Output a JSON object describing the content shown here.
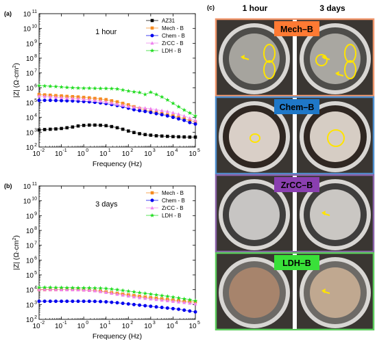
{
  "chart_data": [
    {
      "type": "scatter",
      "panel_label": "(a)",
      "annotation": "1 hour",
      "title": "",
      "xlabel": "Frequency (Hz)",
      "ylabel_main": "|Z| (",
      "ylabel_unit": "Ω·cm",
      "ylabel_sup": "2",
      "ylabel_end": ")",
      "xscale": "log",
      "yscale": "log",
      "xlim_exp": [
        -2,
        5
      ],
      "ylim_exp": [
        2,
        11
      ],
      "xticks": [
        "10",
        "10",
        "10",
        "10",
        "10",
        "10",
        "10",
        "10"
      ],
      "xtick_exps": [
        "-2",
        "-1",
        "0",
        "1",
        "2",
        "3",
        "4",
        "5"
      ],
      "yticks": [
        "10",
        "10",
        "10",
        "10",
        "10",
        "10",
        "10",
        "10",
        "10",
        "10"
      ],
      "ytick_exps": [
        "2",
        "3",
        "4",
        "5",
        "6",
        "7",
        "8",
        "9",
        "10",
        "11"
      ],
      "legend_position": "top-right",
      "x_exp": [
        -2.0,
        -1.75,
        -1.5,
        -1.25,
        -1.0,
        -0.75,
        -0.5,
        -0.25,
        0.0,
        0.25,
        0.5,
        0.75,
        1.0,
        1.25,
        1.5,
        1.75,
        2.0,
        2.25,
        2.5,
        2.75,
        3.0,
        3.25,
        3.5,
        3.75,
        4.0,
        4.25,
        4.5,
        4.75,
        5.0
      ],
      "series": [
        {
          "name": "AZ31",
          "color": "#000000",
          "marker": "square",
          "y_exp": [
            3.15,
            3.18,
            3.2,
            3.22,
            3.25,
            3.3,
            3.35,
            3.42,
            3.46,
            3.48,
            3.48,
            3.47,
            3.44,
            3.38,
            3.3,
            3.2,
            3.08,
            2.98,
            2.9,
            2.84,
            2.8,
            2.76,
            2.74,
            2.72,
            2.7,
            2.69,
            2.68,
            2.67,
            2.67
          ]
        },
        {
          "name": "Mech - B",
          "color": "#f58a1f",
          "marker": "square",
          "y_exp": [
            5.55,
            5.52,
            5.5,
            5.47,
            5.45,
            5.42,
            5.4,
            5.38,
            5.35,
            5.32,
            5.28,
            5.24,
            5.2,
            5.12,
            5.05,
            4.95,
            4.85,
            4.72,
            4.6,
            4.5,
            4.4,
            4.32,
            4.25,
            4.17,
            4.1,
            4.0,
            3.9,
            3.8,
            3.7
          ]
        },
        {
          "name": "Chem - B",
          "color": "#0000ee",
          "marker": "circle",
          "y_exp": [
            5.15,
            5.15,
            5.15,
            5.14,
            5.13,
            5.12,
            5.11,
            5.09,
            5.07,
            5.05,
            5.02,
            4.98,
            4.93,
            4.87,
            4.8,
            4.72,
            4.62,
            4.52,
            4.45,
            4.4,
            4.33,
            4.25,
            4.18,
            4.1,
            4.0,
            3.9,
            3.8,
            3.65,
            3.55
          ]
        },
        {
          "name": "ZrCC - B",
          "color": "#ee82ee",
          "marker": "triangle",
          "y_exp": [
            5.45,
            5.42,
            5.39,
            5.36,
            5.33,
            5.3,
            5.28,
            5.25,
            5.22,
            5.19,
            5.15,
            5.1,
            5.05,
            4.98,
            4.9,
            4.82,
            4.75,
            4.7,
            4.66,
            4.63,
            4.58,
            4.52,
            4.46,
            4.4,
            4.32,
            4.22,
            4.1,
            3.95,
            3.8
          ]
        },
        {
          "name": "LDH - B",
          "color": "#22dd22",
          "marker": "star",
          "y_exp": [
            6.15,
            6.12,
            6.1,
            6.08,
            6.05,
            6.02,
            6.0,
            5.98,
            5.97,
            5.97,
            5.96,
            5.95,
            5.95,
            5.94,
            5.92,
            5.85,
            5.78,
            5.72,
            5.68,
            5.55,
            5.7,
            5.55,
            5.38,
            5.18,
            4.95,
            4.72,
            4.5,
            4.3,
            4.1
          ]
        }
      ]
    },
    {
      "type": "scatter",
      "panel_label": "(b)",
      "annotation": "3 days",
      "title": "",
      "xlabel": "Frequency (Hz)",
      "ylabel_main": "|Z| (",
      "ylabel_unit": "Ω·cm",
      "ylabel_sup": "2",
      "ylabel_end": ")",
      "xscale": "log",
      "yscale": "log",
      "xlim_exp": [
        -2,
        5
      ],
      "ylim_exp": [
        2,
        11
      ],
      "xticks": [
        "10",
        "10",
        "10",
        "10",
        "10",
        "10",
        "10",
        "10"
      ],
      "xtick_exps": [
        "-2",
        "-1",
        "0",
        "1",
        "2",
        "3",
        "4",
        "5"
      ],
      "yticks": [
        "10",
        "10",
        "10",
        "10",
        "10",
        "10",
        "10",
        "10",
        "10",
        "10"
      ],
      "ytick_exps": [
        "2",
        "3",
        "4",
        "5",
        "6",
        "7",
        "8",
        "9",
        "10",
        "11"
      ],
      "legend_position": "top-right",
      "x_exp": [
        -2.0,
        -1.75,
        -1.5,
        -1.25,
        -1.0,
        -0.75,
        -0.5,
        -0.25,
        0.0,
        0.25,
        0.5,
        0.75,
        1.0,
        1.25,
        1.5,
        1.75,
        2.0,
        2.25,
        2.5,
        2.75,
        3.0,
        3.25,
        3.5,
        3.75,
        4.0,
        4.25,
        4.5,
        4.75,
        5.0
      ],
      "series": [
        {
          "name": "Mech - B",
          "color": "#f58a1f",
          "marker": "square",
          "y_exp": [
            4.0,
            4.0,
            4.0,
            4.0,
            4.0,
            4.0,
            4.0,
            4.0,
            3.98,
            3.96,
            3.93,
            3.9,
            3.85,
            3.8,
            3.75,
            3.7,
            3.65,
            3.6,
            3.55,
            3.5,
            3.46,
            3.42,
            3.38,
            3.34,
            3.3,
            3.26,
            3.22,
            3.2,
            3.18
          ]
        },
        {
          "name": "Chem - B",
          "color": "#0000ee",
          "marker": "circle",
          "y_exp": [
            3.22,
            3.22,
            3.22,
            3.22,
            3.22,
            3.22,
            3.22,
            3.22,
            3.22,
            3.22,
            3.21,
            3.2,
            3.18,
            3.15,
            3.12,
            3.08,
            3.04,
            3.0,
            2.96,
            2.92,
            2.88,
            2.84,
            2.8,
            2.76,
            2.72,
            2.68,
            2.62,
            2.56,
            2.5
          ]
        },
        {
          "name": "ZrCC - B",
          "color": "#ee82ee",
          "marker": "triangle",
          "y_exp": [
            4.02,
            4.02,
            4.01,
            4.01,
            4.0,
            4.0,
            4.0,
            3.99,
            3.98,
            3.96,
            3.93,
            3.88,
            3.82,
            3.76,
            3.7,
            3.64,
            3.58,
            3.52,
            3.47,
            3.42,
            3.38,
            3.34,
            3.3,
            3.26,
            3.22,
            3.18,
            3.14,
            3.1,
            3.05
          ]
        },
        {
          "name": "LDH - B",
          "color": "#22dd22",
          "marker": "star",
          "y_exp": [
            4.15,
            4.15,
            4.15,
            4.14,
            4.14,
            4.13,
            4.13,
            4.12,
            4.12,
            4.12,
            4.11,
            4.1,
            4.08,
            4.04,
            4.0,
            3.95,
            3.9,
            3.85,
            3.8,
            3.75,
            3.7,
            3.65,
            3.6,
            3.55,
            3.5,
            3.44,
            3.38,
            3.32,
            3.25
          ]
        }
      ]
    }
  ],
  "photos": {
    "panel_label": "(c)",
    "col_1h": "1 hour",
    "col_3d": "3 days",
    "rows": [
      {
        "label": "Mech–B",
        "border": "#f0956a",
        "label_bg": "#ff7a33",
        "label_color": "#000000",
        "surface_1h": "#a6a49e",
        "surface_3d": "#a9a7a1",
        "ring": "#4e4d4a",
        "circles_1h": 2,
        "circles_3d": 3,
        "arrows_1h": 1,
        "arrows_3d": 2
      },
      {
        "label": "Chem–B",
        "border": "#4f8fcf",
        "label_bg": "#1f78c8",
        "label_color": "#000000",
        "surface_1h": "#d9cfc7",
        "surface_3d": "#d6cdc4",
        "ring": "#2f2722",
        "circles_1h": 1,
        "circles_3d": 1,
        "arrows_1h": 0,
        "arrows_3d": 0
      },
      {
        "label": "ZrCC–B",
        "border": "#8a63a9",
        "label_bg": "#8a3fb0",
        "label_color": "#000000",
        "surface_1h": "#c7c5c3",
        "surface_3d": "#cac7c3",
        "ring": "#3f3e3d",
        "circles_1h": 0,
        "circles_3d": 0,
        "arrows_1h": 0,
        "arrows_3d": 1
      },
      {
        "label": "LDH–B",
        "border": "#5ccc5c",
        "label_bg": "#39e039",
        "label_color": "#000000",
        "surface_1h": "#a7846c",
        "surface_3d": "#c0a890",
        "ring": "#6d6a66",
        "circles_1h": 0,
        "circles_3d": 0,
        "arrows_1h": 0,
        "arrows_3d": 1
      }
    ]
  }
}
